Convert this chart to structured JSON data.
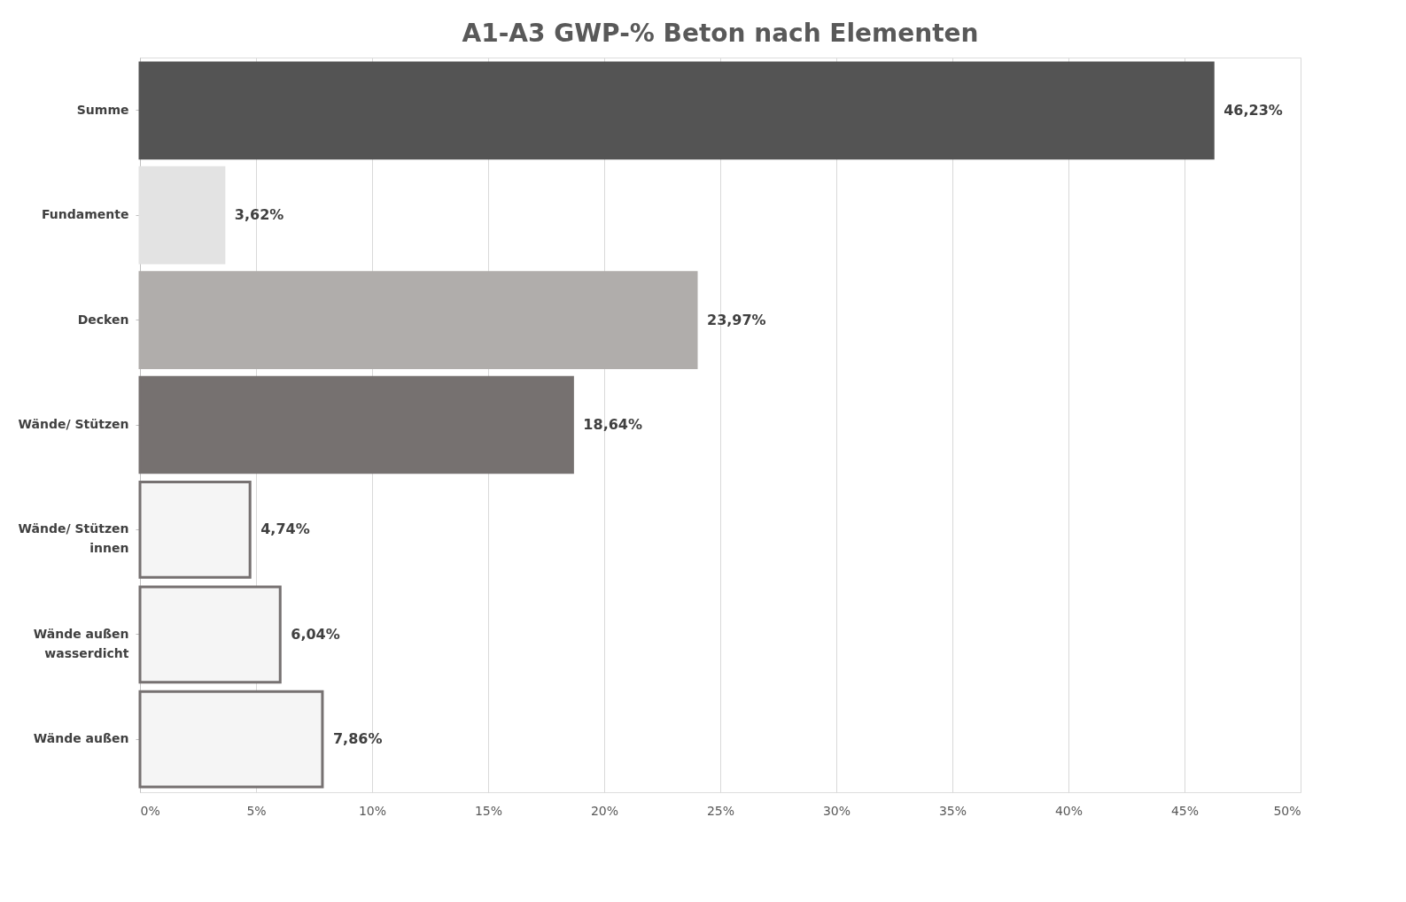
{
  "chart_data": {
    "type": "bar",
    "orientation": "horizontal",
    "title": "A1-A3 GWP-% Beton nach Elementen",
    "categories": [
      "Summe",
      "Fundamente",
      "Decken",
      "Wände/ Stützen",
      "Wände/ Stützen innen",
      "Wände außen wasserdicht",
      "Wände außen"
    ],
    "values": [
      46.23,
      3.62,
      23.97,
      18.64,
      4.74,
      6.04,
      7.86
    ],
    "colors": [
      "#545454",
      "#e3e3e3",
      "#b0adab",
      "#767170",
      "#f5f5f5",
      "#f5f5f5",
      "#f5f5f5"
    ],
    "value_labels": [
      "46,23%",
      "3,62%",
      "23,97%",
      "18,64%",
      "4,74%",
      "6,04%",
      "7,86%"
    ],
    "xlim": [
      0,
      50
    ],
    "xticks": [
      {
        "value": 0,
        "label": "0%"
      },
      {
        "value": 5,
        "label": "5%"
      },
      {
        "value": 10,
        "label": "10%"
      },
      {
        "value": 15,
        "label": "15%"
      },
      {
        "value": 20,
        "label": "20%"
      },
      {
        "value": 25,
        "label": "25%"
      },
      {
        "value": 30,
        "label": "30%"
      },
      {
        "value": 35,
        "label": "35%"
      },
      {
        "value": 40,
        "label": "40%"
      },
      {
        "value": 45,
        "label": "45%"
      },
      {
        "value": 50,
        "label": "50%"
      }
    ],
    "grid": "x"
  }
}
